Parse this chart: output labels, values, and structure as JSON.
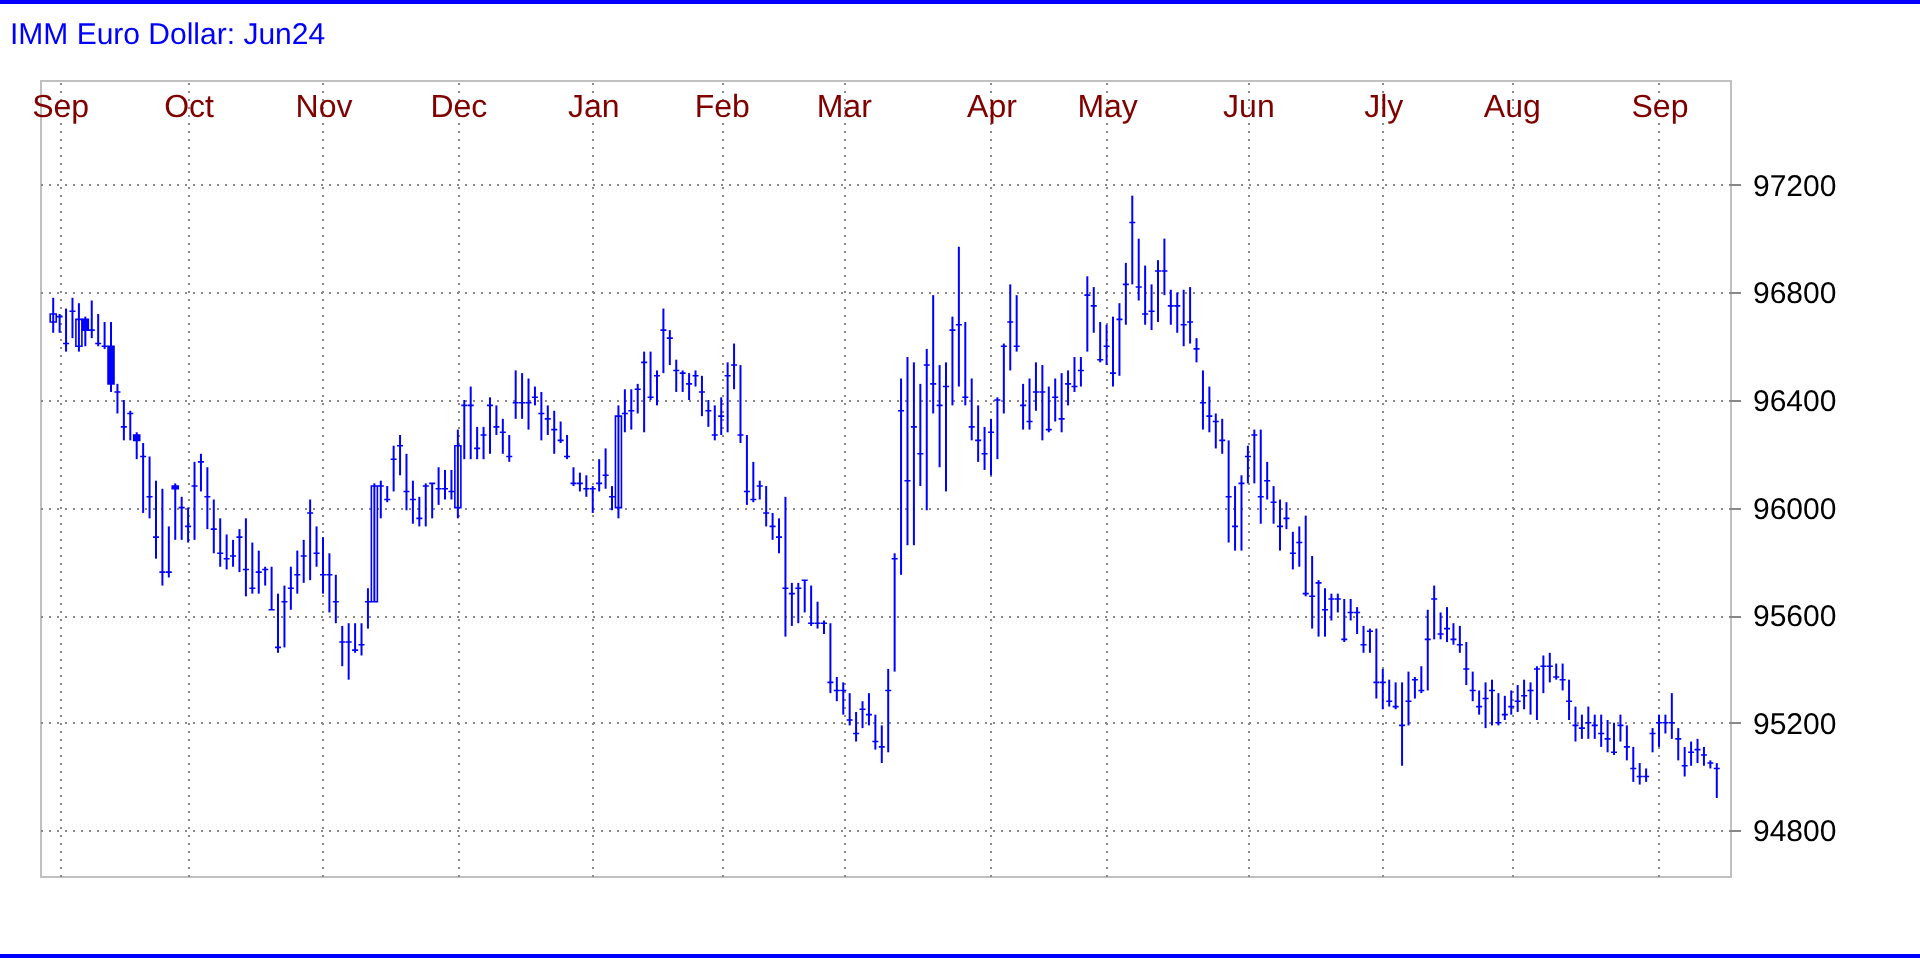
{
  "chart_data": {
    "type": "candlestick",
    "title": "IMM Euro Dollar: Jun24",
    "color": "#0000ff",
    "grid": true,
    "ylim": [
      94630,
      97590
    ],
    "categories": [
      null,
      "Sep",
      null,
      null,
      null,
      null,
      null,
      null,
      null,
      null,
      null,
      null,
      null,
      null,
      null,
      null,
      null,
      null,
      null,
      null,
      null,
      "Oct",
      null,
      null,
      null,
      null,
      null,
      null,
      null,
      null,
      null,
      null,
      null,
      null,
      null,
      null,
      null,
      null,
      null,
      null,
      null,
      null,
      "Nov",
      null,
      null,
      null,
      null,
      null,
      null,
      null,
      null,
      null,
      null,
      null,
      null,
      null,
      null,
      null,
      null,
      null,
      null,
      null,
      null,
      "Dec",
      null,
      null,
      null,
      null,
      null,
      null,
      null,
      null,
      null,
      null,
      null,
      null,
      null,
      null,
      null,
      null,
      null,
      null,
      null,
      null,
      "Jan",
      null,
      null,
      null,
      null,
      null,
      null,
      null,
      null,
      null,
      null,
      null,
      null,
      null,
      null,
      null,
      null,
      null,
      null,
      null,
      "Feb",
      null,
      null,
      null,
      null,
      null,
      null,
      null,
      null,
      null,
      null,
      null,
      null,
      null,
      null,
      null,
      null,
      null,
      null,
      "Mar",
      null,
      null,
      null,
      null,
      null,
      null,
      null,
      null,
      null,
      null,
      null,
      null,
      null,
      null,
      null,
      null,
      null,
      null,
      null,
      null,
      null,
      null,
      "Apr",
      null,
      null,
      null,
      null,
      null,
      null,
      null,
      null,
      null,
      null,
      null,
      null,
      null,
      null,
      null,
      null,
      null,
      "May",
      null,
      null,
      null,
      null,
      null,
      null,
      null,
      null,
      null,
      null,
      null,
      null,
      null,
      null,
      null,
      null,
      null,
      null,
      null,
      null,
      null,
      "Jun",
      null,
      null,
      null,
      null,
      null,
      null,
      null,
      null,
      null,
      null,
      null,
      null,
      null,
      null,
      null,
      null,
      null,
      null,
      null,
      null,
      "Jly",
      null,
      null,
      null,
      null,
      null,
      null,
      null,
      null,
      null,
      null,
      null,
      null,
      null,
      null,
      null,
      null,
      null,
      null,
      null,
      "Aug",
      null,
      null,
      null,
      null,
      null,
      null,
      null,
      null,
      null,
      null,
      null,
      null,
      null,
      null,
      null,
      null,
      null,
      null,
      null,
      null,
      null,
      null,
      "Sep",
      null,
      null,
      null,
      null,
      null,
      null,
      null,
      null,
      null
    ],
    "yticks": [
      94800,
      95200,
      95600,
      96000,
      96400,
      96800,
      97200
    ],
    "ohlc": [
      [
        96690,
        96780,
        96650,
        96720
      ],
      [
        96710,
        96720,
        96650,
        96710
      ],
      [
        96610,
        96740,
        96580,
        96610
      ],
      [
        96730,
        96780,
        96630,
        96730
      ],
      [
        96600,
        96760,
        96580,
        96700
      ],
      [
        96700,
        96710,
        96600,
        96660
      ],
      [
        96660,
        96770,
        96630,
        96660
      ],
      [
        96610,
        96720,
        96600,
        96610
      ],
      [
        96600,
        96690,
        96590,
        96600
      ],
      [
        96600,
        96690,
        96430,
        96460
      ],
      [
        96430,
        96460,
        96350,
        96430
      ],
      [
        96300,
        96400,
        96250,
        96300
      ],
      [
        96350,
        96360,
        96250,
        96350
      ],
      [
        96270,
        96280,
        96180,
        96250
      ],
      [
        96190,
        96240,
        95980,
        96190
      ],
      [
        96040,
        96190,
        95960,
        96040
      ],
      [
        95890,
        96100,
        95810,
        95890
      ],
      [
        95760,
        96070,
        95710,
        95760
      ],
      [
        95760,
        95930,
        95740,
        95760
      ],
      [
        96080,
        96090,
        95880,
        96070
      ],
      [
        96000,
        96040,
        95880,
        96000
      ],
      [
        95930,
        96000,
        95870,
        95930
      ],
      [
        96080,
        96170,
        95880,
        96080
      ],
      [
        96170,
        96200,
        96060,
        96170
      ],
      [
        96040,
        96150,
        95920,
        96040
      ],
      [
        95920,
        96030,
        95830,
        95920
      ],
      [
        95830,
        95960,
        95780,
        95830
      ],
      [
        95810,
        95900,
        95770,
        95810
      ],
      [
        95820,
        95880,
        95780,
        95820
      ],
      [
        95890,
        95920,
        95760,
        95890
      ],
      [
        95770,
        95960,
        95670,
        95770
      ],
      [
        95700,
        95870,
        95680,
        95700
      ],
      [
        95760,
        95840,
        95680,
        95760
      ],
      [
        95770,
        95780,
        95710,
        95770
      ],
      [
        95620,
        95780,
        95620,
        95620
      ],
      [
        95480,
        95680,
        95460,
        95480
      ],
      [
        95650,
        95710,
        95480,
        95650
      ],
      [
        95700,
        95780,
        95620,
        95700
      ],
      [
        95750,
        95840,
        95680,
        95750
      ],
      [
        95820,
        95880,
        95720,
        95820
      ],
      [
        95980,
        96030,
        95730,
        95980
      ],
      [
        95830,
        95930,
        95780,
        95830
      ],
      [
        95750,
        95890,
        95680,
        95750
      ],
      [
        95750,
        95830,
        95610,
        95750
      ],
      [
        95650,
        95750,
        95570,
        95650
      ],
      [
        95500,
        95560,
        95410,
        95500
      ],
      [
        95500,
        95570,
        95360,
        95500
      ],
      [
        95470,
        95570,
        95460,
        95470
      ],
      [
        95490,
        95570,
        95450,
        95490
      ],
      [
        95650,
        95700,
        95550,
        95650
      ],
      [
        95650,
        96090,
        95650,
        96080
      ],
      [
        96080,
        96100,
        95960,
        96080
      ],
      [
        96030,
        96080,
        96020,
        96030
      ],
      [
        96180,
        96230,
        96060,
        96180
      ],
      [
        96230,
        96270,
        96120,
        96230
      ],
      [
        96060,
        96200,
        95990,
        96060
      ],
      [
        96030,
        96100,
        95940,
        96030
      ],
      [
        95960,
        96040,
        95930,
        95960
      ],
      [
        96080,
        96090,
        95930,
        96080
      ],
      [
        96090,
        96090,
        95960,
        96090
      ],
      [
        96070,
        96150,
        96010,
        96070
      ],
      [
        96070,
        96140,
        96030,
        96070
      ],
      [
        96060,
        96140,
        96030,
        96060
      ],
      [
        96000,
        96290,
        95960,
        96230
      ],
      [
        96380,
        96400,
        96180,
        96380
      ],
      [
        96380,
        96450,
        96180,
        96380
      ],
      [
        96220,
        96300,
        96180,
        96220
      ],
      [
        96270,
        96300,
        96180,
        96270
      ],
      [
        96380,
        96410,
        96200,
        96380
      ],
      [
        96300,
        96380,
        96270,
        96300
      ],
      [
        96280,
        96330,
        96200,
        96280
      ],
      [
        96190,
        96270,
        96170,
        96190
      ],
      [
        96390,
        96510,
        96330,
        96390
      ],
      [
        96390,
        96500,
        96330,
        96390
      ],
      [
        96390,
        96480,
        96290,
        96390
      ],
      [
        96410,
        96450,
        96380,
        96410
      ],
      [
        96350,
        96430,
        96250,
        96350
      ],
      [
        96330,
        96380,
        96270,
        96330
      ],
      [
        96290,
        96360,
        96200,
        96290
      ],
      [
        96250,
        96320,
        96240,
        96250
      ],
      [
        96190,
        96270,
        96180,
        96190
      ],
      [
        96090,
        96150,
        96080,
        96090
      ],
      [
        96090,
        96130,
        96060,
        96090
      ],
      [
        96070,
        96120,
        96040,
        96070
      ],
      [
        96070,
        96080,
        95980,
        96070
      ],
      [
        96090,
        96180,
        96060,
        96090
      ],
      [
        96120,
        96220,
        96070,
        96120
      ],
      [
        96040,
        96080,
        95990,
        96040
      ],
      [
        96000,
        96380,
        95960,
        96340
      ],
      [
        96350,
        96440,
        96280,
        96350
      ],
      [
        96360,
        96440,
        96290,
        96360
      ],
      [
        96440,
        96460,
        96350,
        96440
      ],
      [
        96540,
        96580,
        96280,
        96540
      ],
      [
        96410,
        96580,
        96400,
        96410
      ],
      [
        96490,
        96510,
        96380,
        96490
      ],
      [
        96660,
        96740,
        96500,
        96660
      ],
      [
        96630,
        96660,
        96530,
        96630
      ],
      [
        96510,
        96550,
        96430,
        96510
      ],
      [
        96500,
        96510,
        96430,
        96500
      ],
      [
        96460,
        96500,
        96400,
        96460
      ],
      [
        96490,
        96510,
        96450,
        96490
      ],
      [
        96430,
        96490,
        96340,
        96430
      ],
      [
        96360,
        96400,
        96300,
        96360
      ],
      [
        96270,
        96380,
        96250,
        96270
      ],
      [
        96340,
        96410,
        96270,
        96340
      ],
      [
        96490,
        96540,
        96280,
        96490
      ],
      [
        96530,
        96610,
        96440,
        96530
      ],
      [
        96270,
        96530,
        96240,
        96270
      ],
      [
        96060,
        96270,
        96010,
        96060
      ],
      [
        96030,
        96170,
        96020,
        96030
      ],
      [
        96080,
        96100,
        96030,
        96080
      ],
      [
        95980,
        96080,
        95930,
        95980
      ],
      [
        95930,
        95980,
        95880,
        95930
      ],
      [
        95890,
        95960,
        95830,
        95890
      ],
      [
        95700,
        96040,
        95520,
        95700
      ],
      [
        95680,
        95720,
        95560,
        95680
      ],
      [
        95700,
        95720,
        95570,
        95700
      ],
      [
        95730,
        95730,
        95610,
        95730
      ],
      [
        95570,
        95710,
        95560,
        95570
      ],
      [
        95570,
        95650,
        95550,
        95570
      ],
      [
        95570,
        95580,
        95530,
        95570
      ],
      [
        95350,
        95570,
        95310,
        95350
      ],
      [
        95320,
        95370,
        95280,
        95320
      ],
      [
        95320,
        95350,
        95230,
        95320
      ],
      [
        95210,
        95310,
        95190,
        95210
      ],
      [
        95160,
        95240,
        95130,
        95160
      ],
      [
        95250,
        95280,
        95180,
        95250
      ],
      [
        95230,
        95310,
        95190,
        95230
      ],
      [
        95130,
        95230,
        95100,
        95130
      ],
      [
        95110,
        95190,
        95050,
        95110
      ],
      [
        95320,
        95400,
        95090,
        95320
      ],
      [
        95810,
        95830,
        95390,
        95810
      ],
      [
        96360,
        96480,
        95750,
        96360
      ],
      [
        96100,
        96560,
        95860,
        96100
      ],
      [
        96300,
        96540,
        95860,
        96300
      ],
      [
        96200,
        96460,
        96080,
        96200
      ],
      [
        96530,
        96590,
        95990,
        96530
      ],
      [
        96460,
        96790,
        96350,
        96460
      ],
      [
        96380,
        96530,
        96150,
        96380
      ],
      [
        96450,
        96540,
        96060,
        96450
      ],
      [
        96660,
        96710,
        96380,
        96660
      ],
      [
        96680,
        96970,
        96450,
        96680
      ],
      [
        96410,
        96690,
        96380,
        96410
      ],
      [
        96300,
        96480,
        96250,
        96300
      ],
      [
        96250,
        96380,
        96170,
        96250
      ],
      [
        96200,
        96300,
        96140,
        96200
      ],
      [
        96280,
        96330,
        96120,
        96280
      ],
      [
        96400,
        96410,
        96180,
        96400
      ],
      [
        96600,
        96610,
        96350,
        96600
      ],
      [
        96690,
        96830,
        96510,
        96690
      ],
      [
        96600,
        96790,
        96580,
        96600
      ],
      [
        96380,
        96460,
        96290,
        96380
      ],
      [
        96320,
        96480,
        96290,
        96320
      ],
      [
        96430,
        96540,
        96360,
        96430
      ],
      [
        96430,
        96530,
        96250,
        96430
      ],
      [
        96290,
        96450,
        96280,
        96290
      ],
      [
        96410,
        96480,
        96320,
        96410
      ],
      [
        96330,
        96500,
        96280,
        96330
      ],
      [
        96460,
        96510,
        96380,
        96460
      ],
      [
        96450,
        96560,
        96430,
        96450
      ],
      [
        96510,
        96560,
        96450,
        96510
      ],
      [
        96790,
        96860,
        96580,
        96790
      ],
      [
        96750,
        96820,
        96650,
        96750
      ],
      [
        96550,
        96690,
        96540,
        96550
      ],
      [
        96600,
        96680,
        96530,
        96600
      ],
      [
        96500,
        96710,
        96450,
        96500
      ],
      [
        96700,
        96760,
        96490,
        96700
      ],
      [
        96830,
        96910,
        96680,
        96830
      ],
      [
        97060,
        97160,
        96830,
        97060
      ],
      [
        96820,
        97000,
        96770,
        96820
      ],
      [
        96720,
        96900,
        96680,
        96720
      ],
      [
        96730,
        96830,
        96660,
        96730
      ],
      [
        96880,
        96920,
        96690,
        96880
      ],
      [
        96880,
        97000,
        96790,
        96880
      ],
      [
        96750,
        96810,
        96680,
        96750
      ],
      [
        96750,
        96800,
        96650,
        96750
      ],
      [
        96680,
        96810,
        96600,
        96680
      ],
      [
        96690,
        96820,
        96610,
        96690
      ],
      [
        96590,
        96630,
        96540,
        96590
      ],
      [
        96390,
        96510,
        96290,
        96390
      ],
      [
        96340,
        96450,
        96280,
        96340
      ],
      [
        96320,
        96350,
        96220,
        96320
      ],
      [
        96250,
        96330,
        96200,
        96250
      ],
      [
        96040,
        96250,
        95870,
        96040
      ],
      [
        95930,
        96080,
        95840,
        95930
      ],
      [
        96090,
        96120,
        95840,
        96090
      ],
      [
        96190,
        96230,
        96090,
        96190
      ],
      [
        96270,
        96290,
        96090,
        96270
      ],
      [
        96040,
        96290,
        95940,
        96040
      ],
      [
        96100,
        96170,
        96030,
        96100
      ],
      [
        96020,
        96080,
        95940,
        96020
      ],
      [
        95930,
        96030,
        95840,
        95930
      ],
      [
        95960,
        96020,
        95920,
        95960
      ],
      [
        95830,
        95910,
        95770,
        95830
      ],
      [
        95870,
        95930,
        95780,
        95870
      ],
      [
        95680,
        95970,
        95670,
        95680
      ],
      [
        95670,
        95820,
        95550,
        95670
      ],
      [
        95720,
        95730,
        95520,
        95720
      ],
      [
        95620,
        95700,
        95520,
        95620
      ],
      [
        95660,
        95680,
        95580,
        95660
      ],
      [
        95660,
        95680,
        95610,
        95660
      ],
      [
        95510,
        95660,
        95500,
        95510
      ],
      [
        95610,
        95660,
        95580,
        95610
      ],
      [
        95610,
        95630,
        95530,
        95610
      ],
      [
        95490,
        95560,
        95460,
        95490
      ],
      [
        95540,
        95550,
        95460,
        95540
      ],
      [
        95350,
        95550,
        95290,
        95350
      ],
      [
        95350,
        95400,
        95250,
        95350
      ],
      [
        95280,
        95360,
        95260,
        95280
      ],
      [
        95260,
        95350,
        95250,
        95260
      ],
      [
        95190,
        95350,
        95040,
        95190
      ],
      [
        95280,
        95390,
        95190,
        95280
      ],
      [
        95360,
        95370,
        95290,
        95360
      ],
      [
        95320,
        95410,
        95310,
        95320
      ],
      [
        95510,
        95620,
        95320,
        95510
      ],
      [
        95660,
        95710,
        95510,
        95660
      ],
      [
        95530,
        95610,
        95510,
        95530
      ],
      [
        95550,
        95630,
        95500,
        95550
      ],
      [
        95510,
        95570,
        95490,
        95510
      ],
      [
        95490,
        95560,
        95460,
        95490
      ],
      [
        95400,
        95500,
        95340,
        95400
      ],
      [
        95320,
        95390,
        95280,
        95320
      ],
      [
        95260,
        95320,
        95230,
        95260
      ],
      [
        95290,
        95350,
        95180,
        95290
      ],
      [
        95320,
        95360,
        95190,
        95320
      ],
      [
        95200,
        95310,
        95190,
        95200
      ],
      [
        95230,
        95300,
        95210,
        95230
      ],
      [
        95260,
        95320,
        95230,
        95260
      ],
      [
        95280,
        95340,
        95240,
        95280
      ],
      [
        95300,
        95360,
        95250,
        95300
      ],
      [
        95320,
        95350,
        95230,
        95320
      ],
      [
        95400,
        95410,
        95210,
        95400
      ],
      [
        95410,
        95450,
        95310,
        95410
      ],
      [
        95410,
        95460,
        95350,
        95410
      ],
      [
        95370,
        95420,
        95360,
        95370
      ],
      [
        95360,
        95420,
        95320,
        95360
      ],
      [
        95280,
        95360,
        95210,
        95280
      ],
      [
        95190,
        95260,
        95130,
        95190
      ],
      [
        95180,
        95230,
        95140,
        95180
      ],
      [
        95200,
        95260,
        95140,
        95200
      ],
      [
        95190,
        95230,
        95140,
        95190
      ],
      [
        95160,
        95230,
        95110,
        95160
      ],
      [
        95140,
        95210,
        95090,
        95140
      ],
      [
        95090,
        95200,
        95080,
        95090
      ],
      [
        95190,
        95230,
        95130,
        95190
      ],
      [
        95110,
        95190,
        95060,
        95110
      ],
      [
        95030,
        95110,
        94980,
        95030
      ],
      [
        95000,
        95050,
        94970,
        95000
      ],
      [
        95000,
        95030,
        94980,
        95000
      ],
      [
        95160,
        95180,
        95090,
        95160
      ],
      [
        95200,
        95230,
        95110,
        95200
      ],
      [
        95200,
        95230,
        95160,
        95200
      ],
      [
        95200,
        95310,
        95140,
        95200
      ],
      [
        95140,
        95180,
        95060,
        95140
      ],
      [
        95040,
        95110,
        95000,
        95040
      ],
      [
        95090,
        95130,
        95040,
        95090
      ],
      [
        95100,
        95140,
        95050,
        95100
      ],
      [
        95080,
        95110,
        95040,
        95080
      ],
      [
        95050,
        95060,
        95030,
        95050
      ],
      [
        95030,
        95050,
        94920,
        95030
      ]
    ]
  }
}
